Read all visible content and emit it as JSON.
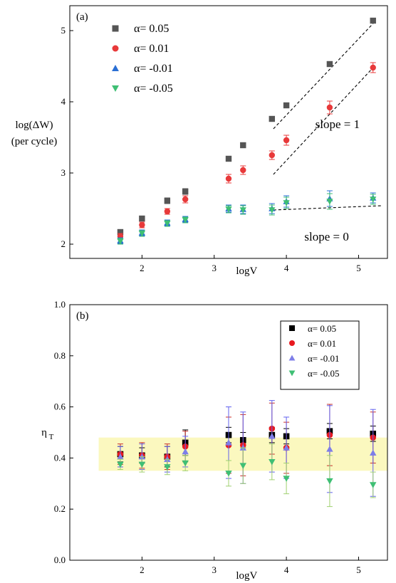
{
  "chart_data": [
    {
      "type": "scatter",
      "panel_label": "(a)",
      "xlabel": "logV",
      "ylabel_lines": [
        "log(ΔW)",
        "(per cycle)"
      ],
      "xlim": [
        1.0,
        5.4
      ],
      "ylim": [
        1.8,
        5.35
      ],
      "xticks": [
        2,
        3,
        4,
        5
      ],
      "yticks": [
        2,
        3,
        4,
        5
      ],
      "legend_position": "top-left",
      "series": [
        {
          "name": "α= 0.05",
          "marker": "square",
          "color": "#555555",
          "x": [
            1.7,
            2.0,
            2.35,
            2.6,
            3.2,
            3.4,
            3.8,
            4.0,
            4.6,
            5.2
          ],
          "y": [
            2.17,
            2.36,
            2.61,
            2.74,
            3.2,
            3.39,
            3.76,
            3.95,
            4.53,
            5.14
          ],
          "err": [
            0.03,
            0.03,
            0.04,
            0.04,
            0.03,
            0.03,
            0.03,
            0.03,
            0.03,
            0.03
          ]
        },
        {
          "name": "α= 0.01",
          "marker": "circle",
          "color": "#e8393a",
          "x": [
            1.7,
            2.0,
            2.35,
            2.6,
            3.2,
            3.4,
            3.8,
            4.0,
            4.6,
            5.2
          ],
          "y": [
            2.11,
            2.27,
            2.46,
            2.63,
            2.92,
            3.04,
            3.25,
            3.46,
            3.92,
            4.48
          ],
          "err": [
            0.04,
            0.04,
            0.04,
            0.05,
            0.06,
            0.06,
            0.06,
            0.07,
            0.09,
            0.07
          ]
        },
        {
          "name": "α= -0.01",
          "marker": "triangle-up",
          "color": "#2a6fd4",
          "x": [
            1.7,
            2.0,
            2.35,
            2.6,
            3.2,
            3.4,
            3.8,
            4.0,
            4.6,
            5.2
          ],
          "y": [
            2.05,
            2.16,
            2.3,
            2.35,
            2.5,
            2.49,
            2.5,
            2.6,
            2.64,
            2.65
          ],
          "err": [
            0.04,
            0.04,
            0.04,
            0.04,
            0.05,
            0.06,
            0.07,
            0.08,
            0.11,
            0.07
          ]
        },
        {
          "name": "α= -0.05",
          "marker": "triangle-down",
          "color": "#3fbf74",
          "x": [
            1.7,
            2.0,
            2.35,
            2.6,
            3.2,
            3.4,
            3.8,
            4.0,
            4.6,
            5.2
          ],
          "y": [
            2.04,
            2.15,
            2.29,
            2.34,
            2.49,
            2.48,
            2.48,
            2.58,
            2.6,
            2.63
          ],
          "err": [
            0.04,
            0.04,
            0.04,
            0.04,
            0.05,
            0.06,
            0.07,
            0.08,
            0.11,
            0.07
          ]
        }
      ],
      "fit_lines": [
        {
          "x": [
            3.82,
            5.22
          ],
          "y": [
            3.62,
            5.12
          ]
        },
        {
          "x": [
            3.82,
            5.22
          ],
          "y": [
            2.98,
            4.5
          ]
        },
        {
          "x": [
            3.82,
            5.32
          ],
          "y": [
            2.48,
            2.54
          ]
        }
      ],
      "annotations": [
        {
          "text": "slope = 1",
          "x": 4.4,
          "y": 3.63
        },
        {
          "text": "slope = 0",
          "x": 4.25,
          "y": 2.05
        }
      ]
    },
    {
      "type": "scatter",
      "panel_label": "(b)",
      "xlabel": "logV",
      "ylabel": "η",
      "ylabel_sub": "T",
      "xlim": [
        1.0,
        5.4
      ],
      "ylim": [
        0.0,
        1.0
      ],
      "xticks": [
        2,
        3,
        4,
        5
      ],
      "yticks": [
        0.0,
        0.2,
        0.4,
        0.6,
        0.8,
        1.0
      ],
      "legend_position": "top-right",
      "band": {
        "y": [
          0.35,
          0.48
        ],
        "x": [
          1.4,
          5.4
        ],
        "color": "#fbf8bf"
      },
      "series": [
        {
          "name": "α= 0.05",
          "marker": "square",
          "color": "#000000",
          "err_color": "#000000",
          "x": [
            1.7,
            2.0,
            2.35,
            2.6,
            3.2,
            3.4,
            3.8,
            4.0,
            4.6,
            5.2
          ],
          "y": [
            0.415,
            0.41,
            0.405,
            0.46,
            0.49,
            0.47,
            0.49,
            0.485,
            0.505,
            0.495
          ],
          "err": [
            0.03,
            0.03,
            0.04,
            0.05,
            0.03,
            0.03,
            0.03,
            0.03,
            0.03,
            0.03
          ]
        },
        {
          "name": "α= 0.01",
          "marker": "circle",
          "color": "#e8191f",
          "err_color": "#c8302b",
          "x": [
            1.7,
            2.0,
            2.35,
            2.6,
            3.2,
            3.4,
            3.8,
            4.0,
            4.6,
            5.2
          ],
          "y": [
            0.415,
            0.41,
            0.405,
            0.445,
            0.45,
            0.45,
            0.515,
            0.44,
            0.49,
            0.48
          ],
          "err": [
            0.04,
            0.05,
            0.05,
            0.06,
            0.11,
            0.12,
            0.1,
            0.1,
            0.12,
            0.1
          ]
        },
        {
          "name": "α= -0.01",
          "marker": "triangle-up",
          "color": "#7e7ee8",
          "err_color": "#6060ee",
          "x": [
            1.7,
            2.0,
            2.35,
            2.6,
            3.2,
            3.4,
            3.8,
            4.0,
            4.6,
            5.2
          ],
          "y": [
            0.405,
            0.405,
            0.395,
            0.425,
            0.46,
            0.44,
            0.485,
            0.44,
            0.435,
            0.42
          ],
          "err": [
            0.04,
            0.05,
            0.05,
            0.06,
            0.14,
            0.14,
            0.14,
            0.12,
            0.17,
            0.17
          ]
        },
        {
          "name": "α= -0.05",
          "marker": "triangle-down",
          "color": "#3fbf74",
          "err_color": "#a0d070",
          "x": [
            1.7,
            2.0,
            2.35,
            2.6,
            3.2,
            3.4,
            3.8,
            4.0,
            4.6,
            5.2
          ],
          "y": [
            0.375,
            0.375,
            0.365,
            0.38,
            0.34,
            0.37,
            0.385,
            0.32,
            0.31,
            0.295
          ],
          "err": [
            0.02,
            0.03,
            0.03,
            0.03,
            0.05,
            0.07,
            0.07,
            0.06,
            0.1,
            0.05
          ]
        }
      ]
    }
  ]
}
